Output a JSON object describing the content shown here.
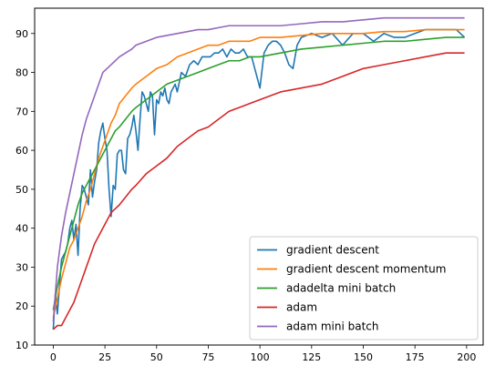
{
  "chart_data": {
    "type": "line",
    "title": "",
    "xlabel": "",
    "ylabel": "",
    "xlim": [
      -9,
      208
    ],
    "ylim": [
      10,
      96.5
    ],
    "xticks": [
      0,
      25,
      50,
      75,
      100,
      125,
      150,
      175,
      200
    ],
    "yticks": [
      10,
      20,
      30,
      40,
      50,
      60,
      70,
      80,
      90
    ],
    "grid": false,
    "legend_position": "lower-right",
    "series": [
      {
        "name": "gradient descent",
        "color": "#1f77b4",
        "x": [
          0,
          1,
          2,
          3,
          4,
          5,
          6,
          7,
          8,
          9,
          10,
          11,
          12,
          13,
          14,
          15,
          16,
          17,
          18,
          19,
          20,
          21,
          22,
          23,
          24,
          25,
          26,
          27,
          28,
          29,
          30,
          31,
          32,
          33,
          34,
          35,
          36,
          37,
          38,
          39,
          40,
          41,
          42,
          43,
          44,
          45,
          46,
          47,
          48,
          49,
          50,
          51,
          52,
          53,
          54,
          55,
          56,
          57,
          58,
          59,
          60,
          62,
          64,
          66,
          68,
          70,
          72,
          74,
          76,
          78,
          80,
          82,
          84,
          86,
          88,
          90,
          92,
          94,
          96,
          98,
          100,
          102,
          104,
          106,
          108,
          110,
          112,
          114,
          116,
          118,
          120,
          125,
          130,
          135,
          140,
          145,
          150,
          155,
          160,
          165,
          170,
          175,
          180,
          185,
          190,
          195,
          197,
          199
        ],
        "y": [
          14,
          23,
          18,
          25,
          32,
          33,
          34,
          36,
          40,
          42,
          37,
          41,
          33,
          45,
          51,
          50,
          48,
          46,
          55,
          48,
          52,
          55,
          62,
          65,
          67,
          63,
          60,
          50,
          43,
          51,
          50,
          59,
          60,
          60,
          55,
          54,
          63,
          64,
          66,
          69,
          65,
          60,
          68,
          75,
          74,
          72,
          70,
          75,
          74,
          64,
          73,
          72,
          75,
          74,
          76,
          73,
          72,
          75,
          76,
          77,
          75,
          80,
          79,
          82,
          83,
          82,
          84,
          84,
          84,
          85,
          85,
          86,
          84,
          86,
          85,
          85,
          86,
          84,
          84,
          80,
          76,
          85,
          87,
          88,
          88,
          87,
          85,
          82,
          81,
          87,
          89,
          90,
          89,
          90,
          87,
          90,
          90,
          88,
          90,
          89,
          89,
          90,
          91,
          91,
          91,
          91,
          90,
          89
        ]
      },
      {
        "name": "gradient descent momentum",
        "color": "#ff7f0e",
        "x": [
          0,
          2,
          4,
          6,
          8,
          10,
          12,
          14,
          16,
          18,
          20,
          22,
          24,
          26,
          28,
          30,
          32,
          35,
          38,
          40,
          45,
          50,
          55,
          60,
          65,
          70,
          75,
          80,
          85,
          90,
          95,
          100,
          110,
          120,
          130,
          140,
          150,
          160,
          170,
          180,
          190,
          199
        ],
        "y": [
          17,
          22,
          27,
          31,
          35,
          37,
          40,
          43,
          47,
          50,
          54,
          58,
          61,
          64,
          67,
          69,
          72,
          74,
          76,
          77,
          79,
          81,
          82,
          84,
          85,
          86,
          87,
          87,
          88,
          88,
          88,
          89,
          89,
          89.5,
          90,
          90,
          90,
          90.5,
          90.5,
          91,
          91,
          91
        ]
      },
      {
        "name": "adadelta mini batch",
        "color": "#2ca02c",
        "x": [
          0,
          2,
          4,
          6,
          8,
          10,
          12,
          14,
          16,
          18,
          20,
          22,
          24,
          26,
          28,
          30,
          32,
          35,
          38,
          40,
          45,
          50,
          55,
          60,
          65,
          70,
          75,
          80,
          85,
          90,
          95,
          100,
          110,
          120,
          130,
          140,
          150,
          160,
          170,
          180,
          190,
          199
        ],
        "y": [
          19,
          25,
          30,
          34,
          38,
          42,
          46,
          49,
          51,
          53,
          55,
          57,
          59,
          61,
          63,
          65,
          66,
          68,
          70,
          71,
          73,
          75,
          77,
          78,
          79,
          80,
          81,
          82,
          83,
          83,
          84,
          84,
          85,
          86,
          86.5,
          87,
          87.5,
          88,
          88,
          88.5,
          89,
          89
        ]
      },
      {
        "name": "adam",
        "color": "#d62728",
        "x": [
          0,
          2,
          4,
          6,
          8,
          10,
          12,
          14,
          16,
          18,
          20,
          22,
          24,
          26,
          28,
          30,
          32,
          35,
          38,
          40,
          45,
          50,
          55,
          60,
          65,
          70,
          75,
          80,
          85,
          90,
          95,
          100,
          110,
          120,
          130,
          140,
          150,
          160,
          170,
          180,
          190,
          199
        ],
        "y": [
          14,
          15,
          15,
          17,
          19,
          21,
          24,
          27,
          30,
          33,
          36,
          38,
          40,
          42,
          44,
          45,
          46,
          48,
          50,
          51,
          54,
          56,
          58,
          61,
          63,
          65,
          66,
          68,
          70,
          71,
          72,
          73,
          75,
          76,
          77,
          79,
          81,
          82,
          83,
          84,
          85,
          85
        ]
      },
      {
        "name": "adam mini batch",
        "color": "#9467bd",
        "x": [
          0,
          2,
          4,
          6,
          8,
          10,
          12,
          14,
          16,
          18,
          20,
          22,
          24,
          26,
          28,
          30,
          32,
          35,
          38,
          40,
          45,
          50,
          55,
          60,
          65,
          70,
          75,
          80,
          85,
          90,
          95,
          100,
          110,
          120,
          130,
          140,
          150,
          160,
          170,
          180,
          190,
          199
        ],
        "y": [
          16,
          30,
          38,
          44,
          49,
          54,
          59,
          64,
          68,
          71,
          74,
          77,
          80,
          81,
          82,
          83,
          84,
          85,
          86,
          87,
          88,
          89,
          89.5,
          90,
          90.5,
          91,
          91,
          91.5,
          92,
          92,
          92,
          92,
          92,
          92.5,
          93,
          93,
          93.5,
          94,
          94,
          94,
          94,
          94
        ]
      }
    ]
  }
}
